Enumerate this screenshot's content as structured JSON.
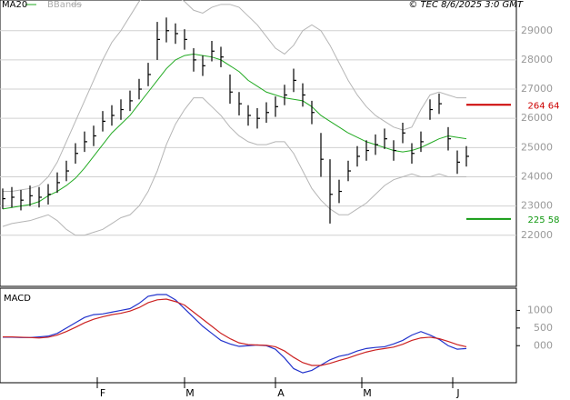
{
  "chart_data": [
    {
      "type": "ohlc",
      "credit": "© TEC 8/6/2025 3:0 GMT",
      "x": [
        0,
        1,
        2,
        3,
        4,
        5,
        6,
        7,
        8,
        9,
        10,
        11,
        12,
        13,
        14,
        15,
        16,
        17,
        18,
        19,
        20,
        21,
        22,
        23,
        24,
        25,
        26,
        27,
        28,
        29,
        30,
        31,
        32,
        33,
        34,
        35,
        36,
        37,
        38,
        39,
        40,
        41,
        42,
        43,
        44,
        45,
        46,
        47,
        48,
        49,
        50,
        51
      ],
      "high": [
        23600,
        23650,
        23550,
        23700,
        23650,
        23750,
        24150,
        24550,
        25150,
        25550,
        25750,
        26250,
        26450,
        26650,
        26950,
        27350,
        27900,
        29300,
        29450,
        29250,
        29050,
        28400,
        28150,
        28650,
        28450,
        27500,
        26900,
        26450,
        26350,
        26550,
        26750,
        27150,
        27700,
        27200,
        26600,
        25500,
        24600,
        23900,
        24550,
        25050,
        25250,
        25450,
        25650,
        25250,
        25850,
        25150,
        25550,
        26650,
        26850,
        25700,
        24900,
        25050
      ],
      "low": [
        22900,
        22950,
        22850,
        23000,
        22950,
        23050,
        23450,
        23850,
        24450,
        24850,
        25050,
        25550,
        25750,
        25950,
        26250,
        26650,
        27100,
        28000,
        28600,
        28550,
        28350,
        27600,
        27450,
        27950,
        27750,
        26500,
        26100,
        25750,
        25650,
        25850,
        26050,
        26450,
        26900,
        26400,
        25800,
        24000,
        22400,
        23100,
        23850,
        24350,
        24550,
        24750,
        24950,
        24550,
        25150,
        24450,
        24850,
        25950,
        26150,
        24900,
        24100,
        24350
      ],
      "close": [
        23250,
        23300,
        23200,
        23350,
        23300,
        23400,
        23800,
        24200,
        24800,
        25200,
        25400,
        25900,
        26100,
        26300,
        26600,
        27000,
        27500,
        28700,
        29000,
        28900,
        28700,
        28000,
        27800,
        28300,
        28100,
        26900,
        26500,
        26100,
        26000,
        26200,
        26400,
        26800,
        27300,
        26800,
        26200,
        24600,
        23400,
        23500,
        24200,
        24700,
        24900,
        25100,
        25300,
        24900,
        25500,
        24800,
        25200,
        26300,
        26500,
        25300,
        24500,
        24700
      ],
      "bar_color": "#000000",
      "series": [
        {
          "name": "MA20",
          "color": "#22aa22",
          "values": [
            22900,
            22950,
            23000,
            23050,
            23150,
            23350,
            23500,
            23700,
            23950,
            24300,
            24700,
            25100,
            25500,
            25800,
            26100,
            26500,
            26900,
            27300,
            27700,
            28000,
            28150,
            28200,
            28150,
            28100,
            28000,
            27800,
            27600,
            27300,
            27100,
            26900,
            26800,
            26700,
            26650,
            26600,
            26400,
            26100,
            25900,
            25700,
            25500,
            25350,
            25200,
            25100,
            25000,
            24900,
            24850,
            24900,
            25000,
            25150,
            25300,
            25400,
            25350,
            25300
          ]
        },
        {
          "name": "BBands",
          "color": "#b5b5b5",
          "upper": [
            23500,
            23500,
            23550,
            23600,
            23700,
            24000,
            24500,
            25200,
            25900,
            26600,
            27300,
            28000,
            28600,
            29000,
            29500,
            30000,
            30300,
            30400,
            30300,
            30200,
            30000,
            29700,
            29600,
            29800,
            29900,
            29900,
            29800,
            29500,
            29200,
            28800,
            28400,
            28200,
            28500,
            29000,
            29200,
            29000,
            28500,
            27900,
            27300,
            26800,
            26400,
            26100,
            25900,
            25700,
            25600,
            25700,
            26300,
            26800,
            26900,
            26800,
            26700,
            26700
          ],
          "lower": [
            22300,
            22400,
            22450,
            22500,
            22600,
            22700,
            22500,
            22200,
            22000,
            22000,
            22100,
            22200,
            22400,
            22600,
            22700,
            23000,
            23500,
            24200,
            25100,
            25800,
            26300,
            26700,
            26700,
            26400,
            26100,
            25700,
            25400,
            25200,
            25100,
            25100,
            25200,
            25200,
            24800,
            24200,
            23600,
            23200,
            22900,
            22700,
            22700,
            22900,
            23100,
            23400,
            23700,
            23900,
            24000,
            24100,
            24000,
            24000,
            24100,
            24000,
            24000,
            24000
          ]
        }
      ],
      "levels": [
        {
          "value": 26464,
          "label": "264 64",
          "color": "#cc0000"
        },
        {
          "value": 22558,
          "label": "225 58",
          "color": "#119911"
        }
      ],
      "xlim": [
        -0.3,
        56.5
      ],
      "ylim": [
        20250,
        30050
      ],
      "yticks": [
        22000,
        23000,
        24000,
        25000,
        26000,
        27000,
        28000,
        29000
      ],
      "grid": true
    },
    {
      "type": "line",
      "title": "MACD",
      "series": [
        {
          "color": "#2233cc",
          "values": [
            240,
            240,
            230,
            230,
            250,
            270,
            350,
            500,
            650,
            800,
            880,
            900,
            950,
            1000,
            1050,
            1200,
            1400,
            1450,
            1450,
            1300,
            1050,
            800,
            550,
            350,
            150,
            50,
            -20,
            0,
            20,
            0,
            -100,
            -350,
            -650,
            -770,
            -700,
            -550,
            -400,
            -300,
            -250,
            -150,
            -80,
            -50,
            -30,
            50,
            150,
            300,
            400,
            300,
            180,
            0,
            -100,
            -80
          ]
        },
        {
          "color": "#cc2222",
          "values": [
            250,
            250,
            240,
            230,
            220,
            240,
            300,
            400,
            520,
            650,
            750,
            820,
            880,
            920,
            980,
            1080,
            1220,
            1300,
            1320,
            1250,
            1150,
            950,
            750,
            550,
            350,
            200,
            80,
            30,
            20,
            10,
            -30,
            -150,
            -330,
            -480,
            -560,
            -560,
            -500,
            -420,
            -350,
            -260,
            -180,
            -120,
            -80,
            -40,
            40,
            150,
            220,
            240,
            200,
            120,
            30,
            -30
          ]
        }
      ],
      "ylim": [
        -1050,
        1630
      ],
      "yticks": [
        1000,
        500,
        {
          "value": 0,
          "label": "000"
        }
      ],
      "xlim": [
        -0.3,
        56.5
      ],
      "xticks": [
        {
          "value": 10.4,
          "label": "F"
        },
        {
          "value": 20,
          "label": "M"
        },
        {
          "value": 30,
          "label": "A"
        },
        {
          "value": 39.5,
          "label": "M"
        },
        {
          "value": 49.5,
          "label": "J"
        }
      ]
    }
  ]
}
